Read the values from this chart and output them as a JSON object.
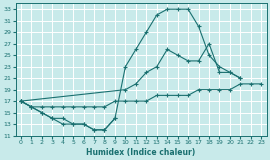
{
  "xlabel": "Humidex (Indice chaleur)",
  "bg_color": "#c8eaea",
  "grid_color": "#ffffff",
  "line_color": "#1a7070",
  "xlim": [
    -0.5,
    23.5
  ],
  "ylim": [
    11,
    34
  ],
  "xticks": [
    0,
    1,
    2,
    3,
    4,
    5,
    6,
    7,
    8,
    9,
    10,
    11,
    12,
    13,
    14,
    15,
    16,
    17,
    18,
    19,
    20,
    21,
    22,
    23
  ],
  "yticks": [
    11,
    13,
    15,
    17,
    19,
    21,
    23,
    25,
    27,
    29,
    31,
    33
  ],
  "line1_x": [
    0,
    1,
    2,
    3,
    4,
    5,
    6,
    7,
    8,
    9,
    10,
    11,
    12,
    13,
    14,
    15,
    16,
    17,
    18,
    19,
    20,
    21
  ],
  "line1_y": [
    17,
    16,
    15,
    14,
    13,
    13,
    13,
    12,
    12,
    14,
    23,
    26,
    29,
    32,
    33,
    33,
    33,
    30,
    25,
    23,
    22,
    21
  ],
  "line2_x": [
    0,
    10,
    11,
    12,
    13,
    14,
    15,
    16,
    17,
    18,
    19,
    20,
    21
  ],
  "line2_y": [
    17,
    19,
    20,
    22,
    23,
    26,
    25,
    24,
    24,
    27,
    22,
    22,
    21
  ],
  "line3_x": [
    0,
    1,
    2,
    3,
    4,
    5,
    6,
    7,
    8,
    9,
    10,
    11,
    12,
    13,
    14,
    15,
    16,
    17,
    18,
    19,
    20,
    21,
    22,
    23
  ],
  "line3_y": [
    17,
    16,
    16,
    16,
    16,
    16,
    16,
    16,
    16,
    17,
    17,
    17,
    17,
    18,
    18,
    18,
    18,
    19,
    19,
    19,
    19,
    20,
    20,
    20
  ],
  "line4_x": [
    0,
    1,
    2,
    3,
    4,
    5,
    6,
    7,
    8,
    9
  ],
  "line4_y": [
    17,
    16,
    15,
    14,
    14,
    13,
    13,
    12,
    12,
    14
  ]
}
